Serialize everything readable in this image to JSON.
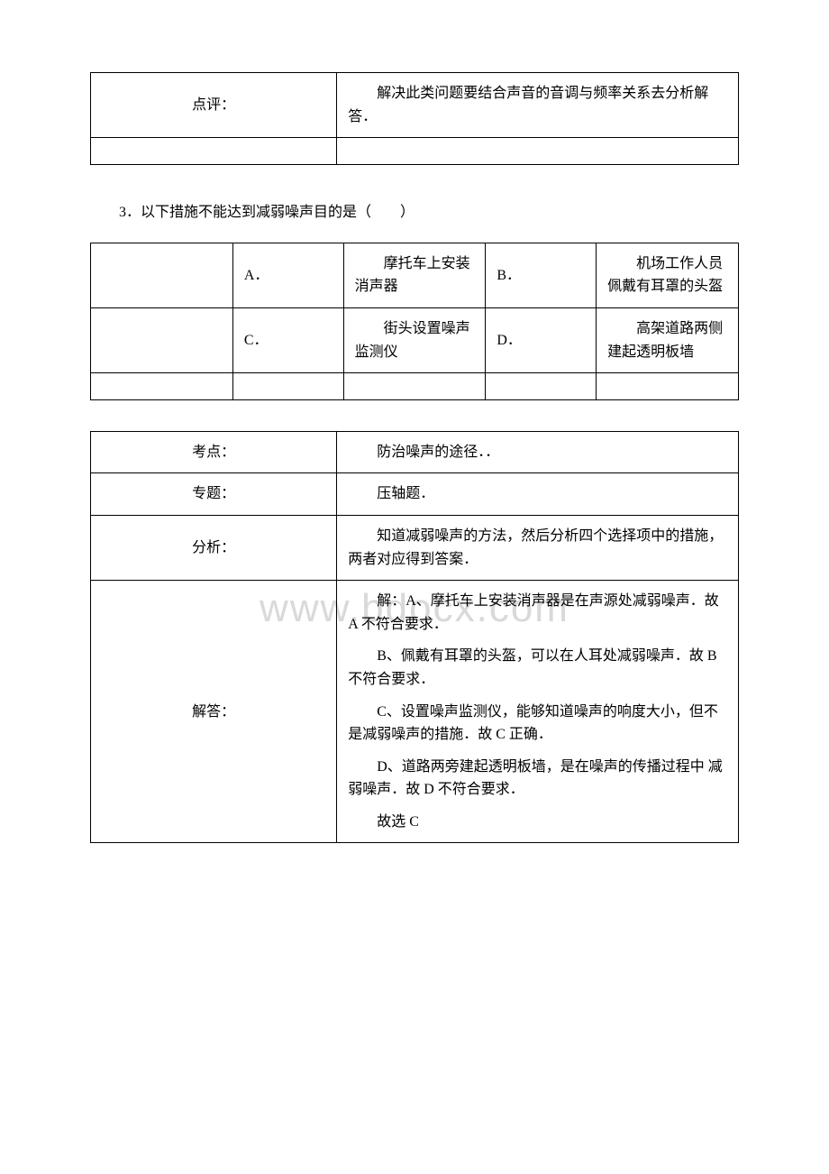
{
  "watermark": "www.bdocx.com",
  "table1": {
    "r1_label": "点评：",
    "r1_content": "解决此类问题要结合声音的音调与频率关系去分析解答．"
  },
  "question3": "3．以下措施不能达到减弱噪声目的是（　　）",
  "options": {
    "a_letter": "A．",
    "a_text": "摩托车上安装消声器",
    "b_letter": "B．",
    "b_text": "机场工作人员佩戴有耳罩的头盔",
    "c_letter": "C．",
    "c_text": "街头设置噪声监测仪",
    "d_letter": "D．",
    "d_text": "高架道路两侧建起透明板墙"
  },
  "table3": {
    "kaodian_label": "考点：",
    "kaodian_content": "防治噪声的途径．．",
    "zhuanti_label": "专题：",
    "zhuanti_content": "压轴题．",
    "fenxi_label": "分析：",
    "fenxi_content": "知道减弱噪声的方法，然后分析四个选择项中的措施，两者对应得到答案．",
    "jieda_label": "解答：",
    "jieda_p1": "解：A、摩托车上安装消声器是在声源处减弱噪声．故 A 不符合要求．",
    "jieda_p2": "B、佩戴有耳罩的头盔，可以在人耳处减弱噪声．故 B 不符合要求．",
    "jieda_p3": "C、设置噪声监测仪，能够知道噪声的响度大小，但不是减弱噪声的措施．故 C 正确．",
    "jieda_p4": "D、道路两旁建起透明板墙，是在噪声的传播过程中 减弱噪声．故 D 不符合要求．",
    "jieda_p5": "故选 C"
  }
}
